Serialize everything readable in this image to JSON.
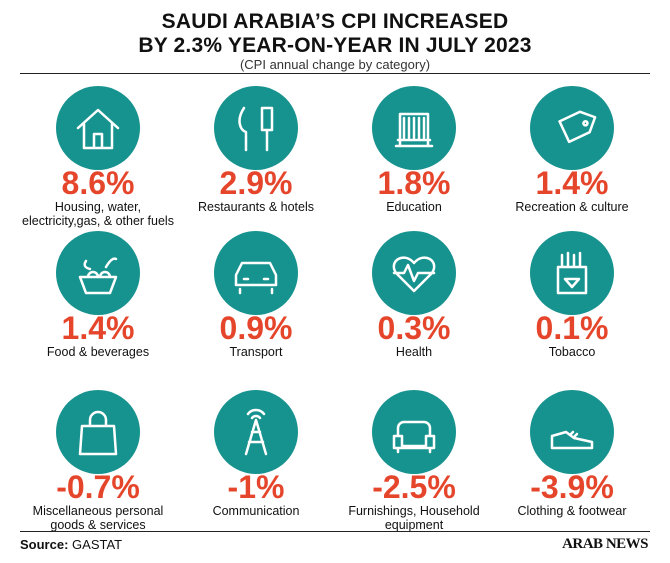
{
  "header": {
    "title_lines": [
      "SAUDI ARABIA’S CPI INCREASED",
      "BY 2.3% YEAR-ON-YEAR IN JULY 2023"
    ],
    "subtitle": "(CPI annual change by category)"
  },
  "items": [
    {
      "value": "8.6%",
      "label": "Housing, water, electricity,gas, & other fuels"
    },
    {
      "value": "2.9%",
      "label": "Restaurants & hotels"
    },
    {
      "value": "1.8%",
      "label": "Education"
    },
    {
      "value": "1.4%",
      "label": "Recreation & culture"
    },
    {
      "value": "1.4%",
      "label": "Food & beverages"
    },
    {
      "value": "0.9%",
      "label": "Transport"
    },
    {
      "value": "0.3%",
      "label": "Health"
    },
    {
      "value": "0.1%",
      "label": "Tobacco"
    },
    {
      "value": "-0.7%",
      "label": "Miscellaneous personal goods & services"
    },
    {
      "value": "-1%",
      "label": "Communication"
    },
    {
      "value": "-2.5%",
      "label": "Furnishings, Household equipment"
    },
    {
      "value": "-3.9%",
      "label": "Clothing & footwear"
    }
  ],
  "footer": {
    "source_label": "Source:",
    "source": "GASTAT",
    "brand": "ARAB NEWS"
  }
}
